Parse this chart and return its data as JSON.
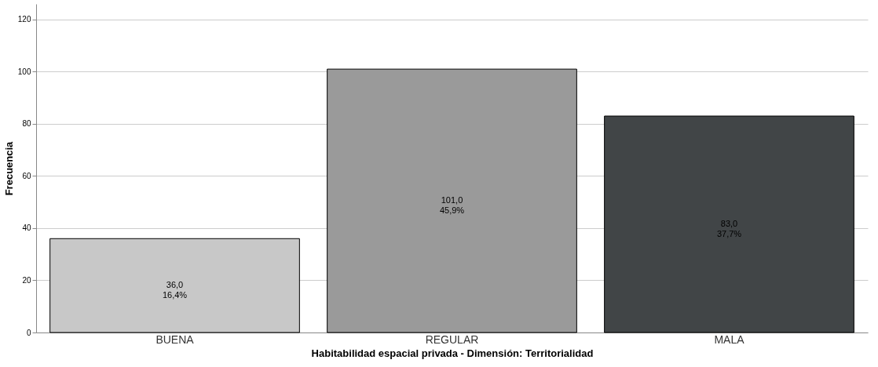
{
  "chart_data": {
    "type": "bar",
    "xlabel": "Habitabilidad espacial privada - Dimensión: Territorialidad",
    "ylabel": "Frecuencia",
    "categories": [
      "BUENA",
      "REGULAR",
      "MALA"
    ],
    "values": [
      36,
      101,
      83
    ],
    "colors": [
      "#c8c8c8",
      "#9a9a9a",
      "#414547"
    ],
    "value_labels": [
      "36,0\n16,4%",
      "101,0\n45,9%",
      "83,0\n37,7%"
    ],
    "ylim": [
      0,
      126
    ],
    "yticks": [
      0,
      20,
      40,
      60,
      80,
      100,
      120
    ],
    "grid": "y"
  }
}
